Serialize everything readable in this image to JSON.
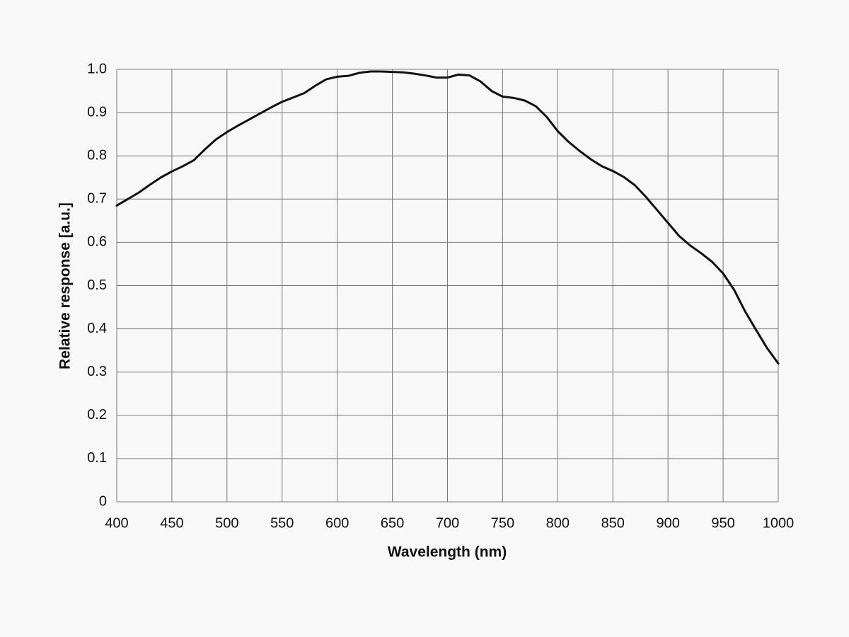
{
  "chart_data": {
    "type": "line",
    "x_label": "Wavelength (nm)",
    "y_label": "Relative response [a.u.]",
    "x": [
      400,
      410,
      420,
      430,
      440,
      450,
      460,
      470,
      480,
      490,
      500,
      510,
      520,
      530,
      540,
      550,
      560,
      570,
      580,
      590,
      600,
      610,
      620,
      630,
      640,
      650,
      660,
      670,
      680,
      690,
      700,
      710,
      720,
      730,
      740,
      750,
      760,
      770,
      780,
      790,
      800,
      810,
      820,
      830,
      840,
      850,
      860,
      870,
      880,
      890,
      900,
      910,
      920,
      930,
      940,
      950,
      960,
      970,
      980,
      990,
      1000
    ],
    "values": [
      0.685,
      0.7,
      0.715,
      0.733,
      0.75,
      0.764,
      0.776,
      0.79,
      0.815,
      0.838,
      0.855,
      0.87,
      0.884,
      0.898,
      0.912,
      0.925,
      0.935,
      0.945,
      0.962,
      0.977,
      0.983,
      0.985,
      0.992,
      0.995,
      0.995,
      0.994,
      0.993,
      0.99,
      0.986,
      0.981,
      0.981,
      0.988,
      0.986,
      0.972,
      0.95,
      0.937,
      0.934,
      0.928,
      0.915,
      0.89,
      0.857,
      0.832,
      0.811,
      0.792,
      0.776,
      0.765,
      0.751,
      0.732,
      0.705,
      0.675,
      0.645,
      0.615,
      0.593,
      0.575,
      0.555,
      0.528,
      0.49,
      0.44,
      0.397,
      0.355,
      0.32
    ],
    "color": "#111111",
    "xlim": [
      400,
      1000
    ],
    "xticks": [
      400,
      450,
      500,
      550,
      600,
      650,
      700,
      750,
      800,
      850,
      900,
      950,
      1000
    ],
    "ylim": [
      0,
      1
    ],
    "yticks": [
      0,
      0.1,
      0.2,
      0.3,
      0.4,
      0.5,
      0.6,
      0.7,
      0.8,
      0.9,
      {
        "value": 1,
        "label": "1.0"
      }
    ],
    "grid": true
  }
}
